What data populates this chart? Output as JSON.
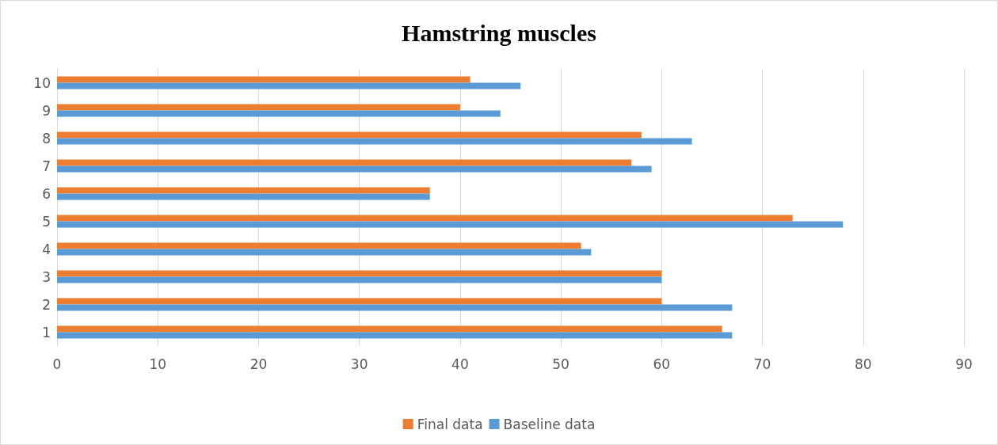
{
  "chart_data": {
    "type": "bar",
    "orientation": "horizontal",
    "title": "Hamstring muscles",
    "categories": [
      "10",
      "9",
      "8",
      "7",
      "6",
      "5",
      "4",
      "3",
      "2",
      "1"
    ],
    "series": [
      {
        "name": "Final data",
        "color": "#ed7d31",
        "values": [
          41,
          40,
          58,
          57,
          37,
          73,
          52,
          60,
          60,
          66
        ]
      },
      {
        "name": "Baseline data",
        "color": "#5b9bd5",
        "values": [
          46,
          44,
          63,
          59,
          37,
          78,
          53,
          60,
          67,
          67
        ]
      }
    ],
    "xlim": [
      0,
      90
    ],
    "xticks": [
      0,
      10,
      20,
      30,
      40,
      50,
      60,
      70,
      80,
      90
    ],
    "grid": "x",
    "legend": "bottom"
  }
}
